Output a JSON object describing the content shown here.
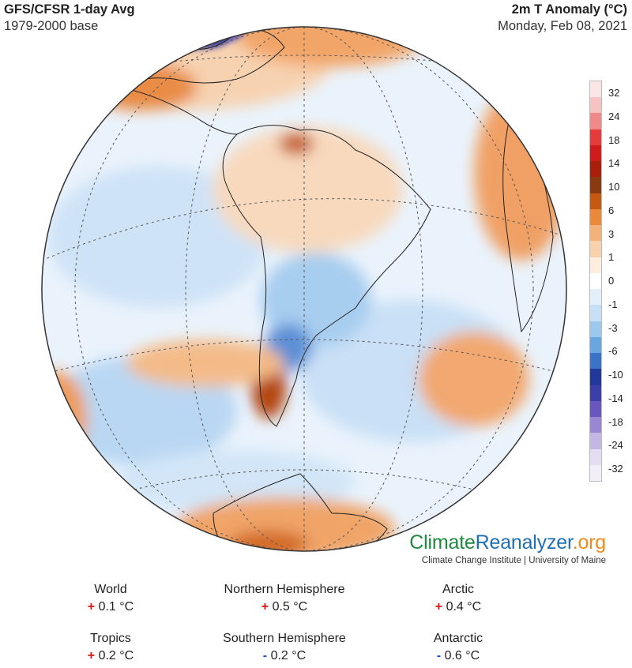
{
  "header": {
    "title_left": "GFS/CFSR 1-day Avg",
    "subtitle_left": "1979-2000 base",
    "title_right": "2m T Anomaly (°C)",
    "subtitle_right": "Monday, Feb 08, 2021"
  },
  "legend": {
    "labels": [
      "32",
      "24",
      "18",
      "14",
      "10",
      "6",
      "3",
      "1",
      "0",
      "-1",
      "-3",
      "-6",
      "-10",
      "-14",
      "-18",
      "-24",
      "-32"
    ],
    "colors": [
      "#fbe5e5",
      "#f7c2c2",
      "#ef8a8a",
      "#e63b3b",
      "#cf1b1b",
      "#a8200c",
      "#8a3a10",
      "#c45a12",
      "#e88a3a",
      "#f3b27a",
      "#f8d2ad",
      "#fdeedd",
      "#ffffff",
      "#e3f0fb",
      "#c6e0f6",
      "#9cc8ee",
      "#6aa6e0",
      "#3b73c8",
      "#22389a",
      "#3d3fa8",
      "#6a57bd",
      "#9a86d2",
      "#c4b7e3",
      "#e5ddf1",
      "#f2eef8"
    ]
  },
  "brand": {
    "name_part1": "Climate",
    "name_part2": "Reanalyzer",
    "name_part3": ".org",
    "tagline": "Climate Change Institute | University of Maine"
  },
  "stats": [
    {
      "name": "World",
      "sign": "+",
      "value": "0.1 °C"
    },
    {
      "name": "Northern Hemisphere",
      "sign": "+",
      "value": "0.5 °C"
    },
    {
      "name": "Arctic",
      "sign": "+",
      "value": "0.4 °C"
    },
    {
      "name": "Tropics",
      "sign": "+",
      "value": "0.2 °C"
    },
    {
      "name": "Southern Hemisphere",
      "sign": "-",
      "value": "0.2 °C"
    },
    {
      "name": "Antarctic",
      "sign": "-",
      "value": "0.6 °C"
    }
  ]
}
